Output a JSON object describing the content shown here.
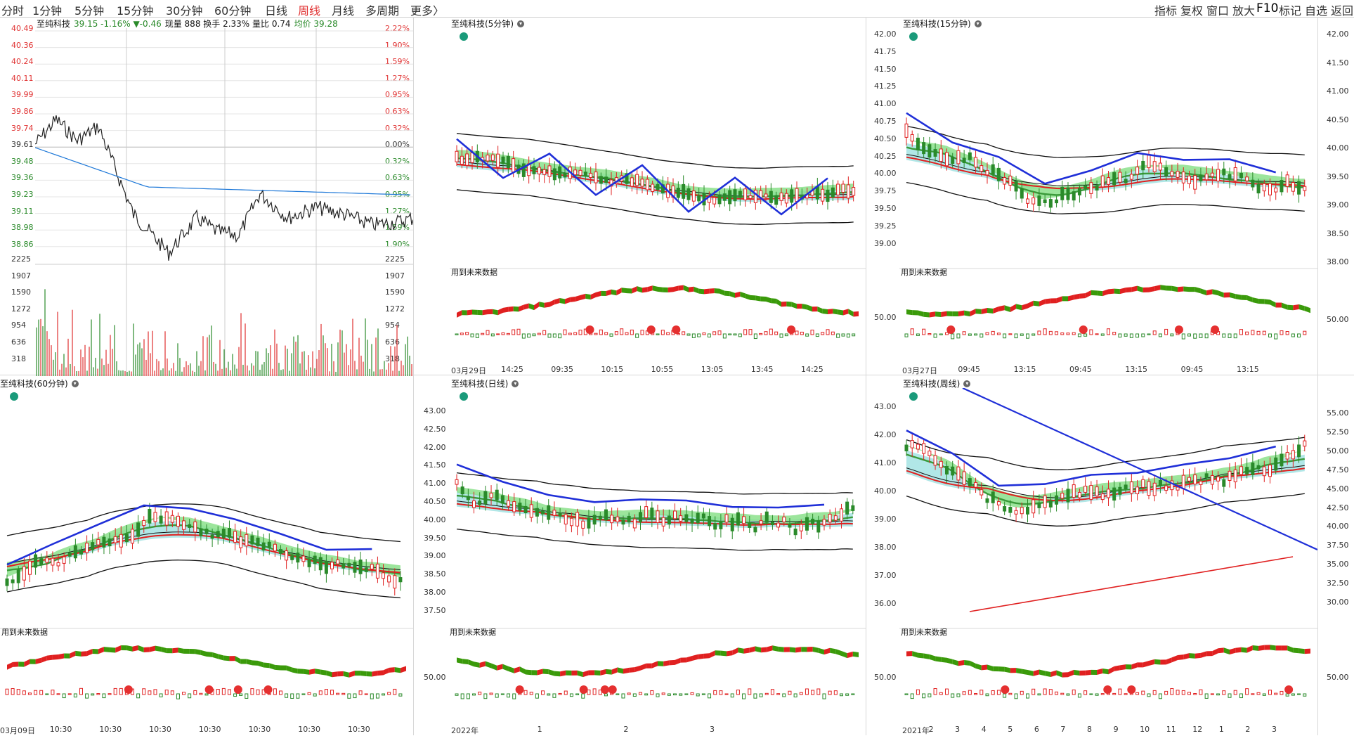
{
  "toolbar": {
    "periods": [
      "分时",
      "1分钟",
      "5分钟",
      "15分钟",
      "30分钟",
      "60分钟",
      "日线",
      "周线",
      "月线",
      "多周期",
      "更多〉"
    ],
    "active_period": "周线",
    "tools": [
      "指标",
      "复权",
      "窗口",
      "放大",
      "F10",
      "标记",
      "自选",
      "返回"
    ]
  },
  "timeshare": {
    "title": "至纯科技",
    "stat1": "39.15 -1.16% ▼-0.46",
    "stat2": "现量 888 换手 2.33% 量比 0.74",
    "avg": "均价 39.28",
    "price_labels": [
      "40.49",
      "40.36",
      "40.24",
      "40.11",
      "39.99",
      "39.86",
      "39.74",
      "39.61",
      "39.48",
      "39.36",
      "39.23",
      "39.11",
      "38.98",
      "38.86"
    ],
    "pct_labels": [
      "2.22%",
      "1.90%",
      "1.59%",
      "1.27%",
      "0.95%",
      "0.63%",
      "0.32%",
      "0.00%",
      "0.32%",
      "0.63%",
      "0.95%",
      "1.27%",
      "1.59%",
      "1.90%"
    ],
    "volume_labels": [
      "2225",
      "1907",
      "1590",
      "1272",
      "954",
      "636",
      "318"
    ],
    "colors": {
      "up": "#e03030",
      "down": "#2a8a2a",
      "neutral": "#333333",
      "avg_line": "#1e78d8"
    }
  },
  "panels": {
    "p5m": {
      "title": "至纯科技(5分钟)",
      "note": "用到未来数据",
      "x_labels": [
        "03月29日",
        "14:25",
        "09:35",
        "10:15",
        "10:55",
        "13:05",
        "13:45",
        "14:25"
      ]
    },
    "p15m": {
      "title": "至纯科技(15分钟)",
      "note": "用到未来数据",
      "y_labels": [
        "42.00",
        "41.75",
        "41.50",
        "41.25",
        "41.00",
        "40.75",
        "40.50",
        "40.25",
        "40.00",
        "39.75",
        "39.50",
        "39.25",
        "39.00"
      ],
      "indicator_label": "50.00",
      "x_labels": [
        "03月27日",
        "09:45",
        "13:15",
        "09:45",
        "13:15",
        "09:45",
        "13:15"
      ]
    },
    "right1": {
      "y_labels": [
        "42.00",
        "41.50",
        "41.00",
        "40.50",
        "40.00",
        "39.50",
        "39.00",
        "38.50",
        "38.00"
      ],
      "indicator_label": "50.00"
    },
    "p60m": {
      "title": "至纯科技(60分钟)",
      "note": "用到未来数据",
      "x_labels": [
        "03月09日",
        "10:30",
        "10:30",
        "10:30",
        "10:30",
        "10:30",
        "10:30",
        "10:30"
      ]
    },
    "pday": {
      "title": "至纯科技(日线)",
      "note": "用到未来数据",
      "y_labels": [
        "43.00",
        "42.50",
        "42.00",
        "41.50",
        "41.00",
        "40.50",
        "40.00",
        "39.50",
        "39.00",
        "38.50",
        "38.00",
        "37.50"
      ],
      "indicator_label": "50.00",
      "x_labels": [
        "2022年",
        "1",
        "2",
        "3"
      ]
    },
    "pweek": {
      "title": "至纯科技(周线)",
      "note": "用到未来数据",
      "y_labels": [
        "43.00",
        "42.00",
        "41.00",
        "40.00",
        "39.00",
        "38.00",
        "37.00",
        "36.00"
      ],
      "indicator_label": "50.00",
      "x_labels": [
        "2021年",
        "2",
        "3",
        "4",
        "5",
        "6",
        "7",
        "8",
        "9",
        "10",
        "11",
        "12",
        "1",
        "2",
        "3"
      ]
    },
    "right2": {
      "y_labels": [
        "55.00",
        "52.50",
        "50.00",
        "47.50",
        "45.00",
        "42.50",
        "40.00",
        "37.50",
        "35.00",
        "32.50",
        "30.00"
      ],
      "indicator_label": "50.00"
    }
  }
}
